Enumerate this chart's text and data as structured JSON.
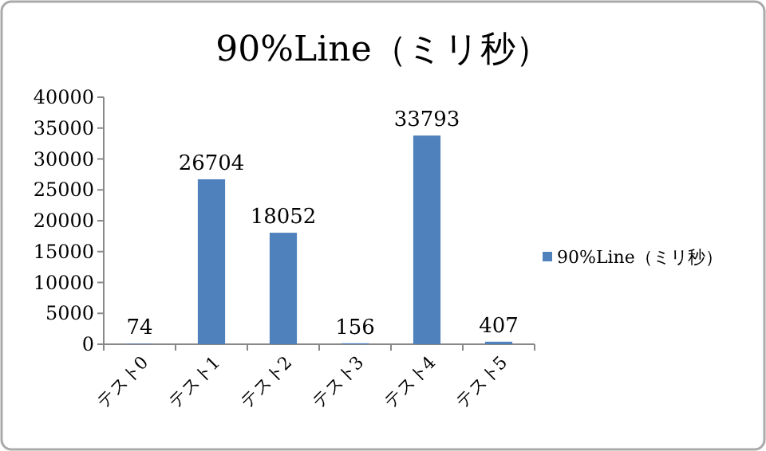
{
  "chart_data": {
    "type": "bar",
    "title": "90%Line（ミリ秒）",
    "categories": [
      "テスト0",
      "テスト1",
      "テスト2",
      "テスト3",
      "テスト4",
      "テスト5"
    ],
    "series": [
      {
        "name": "90%Line（ミリ秒）",
        "color": "#4f81bd",
        "values": [
          74,
          26704,
          18052,
          156,
          33793,
          407
        ]
      }
    ],
    "ylim": [
      0,
      40000
    ],
    "yticks": [
      0,
      5000,
      10000,
      15000,
      20000,
      25000,
      30000,
      35000,
      40000
    ],
    "data_labels": true,
    "legend": "right"
  }
}
